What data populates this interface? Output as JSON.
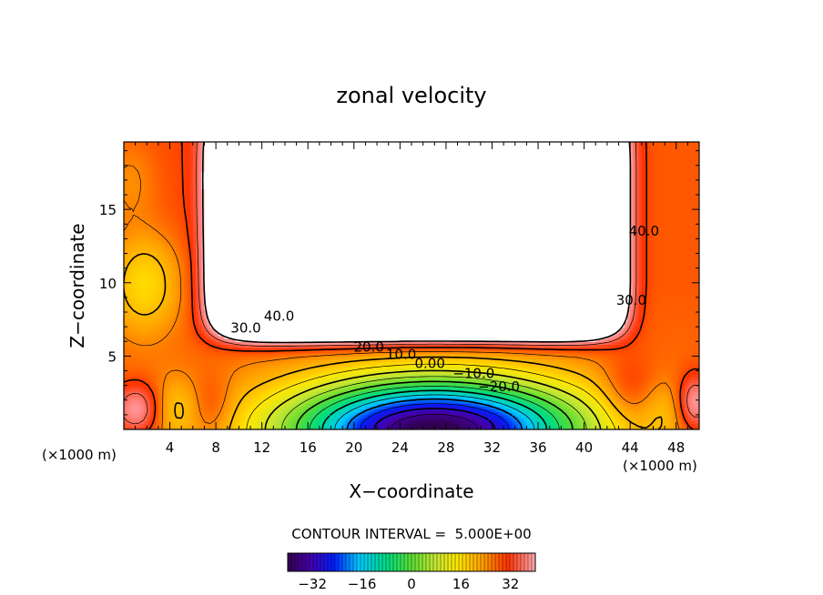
{
  "chart_data": {
    "type": "heatmap",
    "title": "zonal velocity",
    "xlabel": "X−coordinate",
    "ylabel": "Z−coordinate",
    "x_unit_left": "(×1000 m)",
    "x_unit_right": "(×1000 m)",
    "xlim": [
      0,
      50
    ],
    "ylim": [
      0,
      19.6
    ],
    "x_ticks": [
      4,
      8,
      12,
      16,
      20,
      24,
      28,
      32,
      36,
      40,
      44,
      48
    ],
    "y_ticks": [
      5,
      10,
      15
    ],
    "contour_interval_text": "CONTOUR INTERVAL =  5.000E+00",
    "contour_labels": [
      {
        "text": "40.0",
        "x": 13.5,
        "z": 7.4
      },
      {
        "text": "30.0",
        "x": 10.6,
        "z": 6.6
      },
      {
        "text": "20.0",
        "x": 21.3,
        "z": 5.3
      },
      {
        "text": "10.0",
        "x": 24.1,
        "z": 4.8
      },
      {
        "text": "0.00",
        "x": 26.6,
        "z": 4.2
      },
      {
        "text": "−10.0",
        "x": 30.4,
        "z": 3.5
      },
      {
        "text": "−20.0",
        "x": 32.6,
        "z": 2.6
      },
      {
        "text": "40.0",
        "x": 45.2,
        "z": 13.2
      },
      {
        "text": "30.0",
        "x": 44.1,
        "z": 8.5
      }
    ],
    "colorbar": {
      "range": [
        -40,
        40
      ],
      "ticks": [
        "−32",
        "−16",
        "0",
        "16",
        "32"
      ],
      "tick_values": [
        -32,
        -16,
        0,
        16,
        32
      ]
    }
  }
}
